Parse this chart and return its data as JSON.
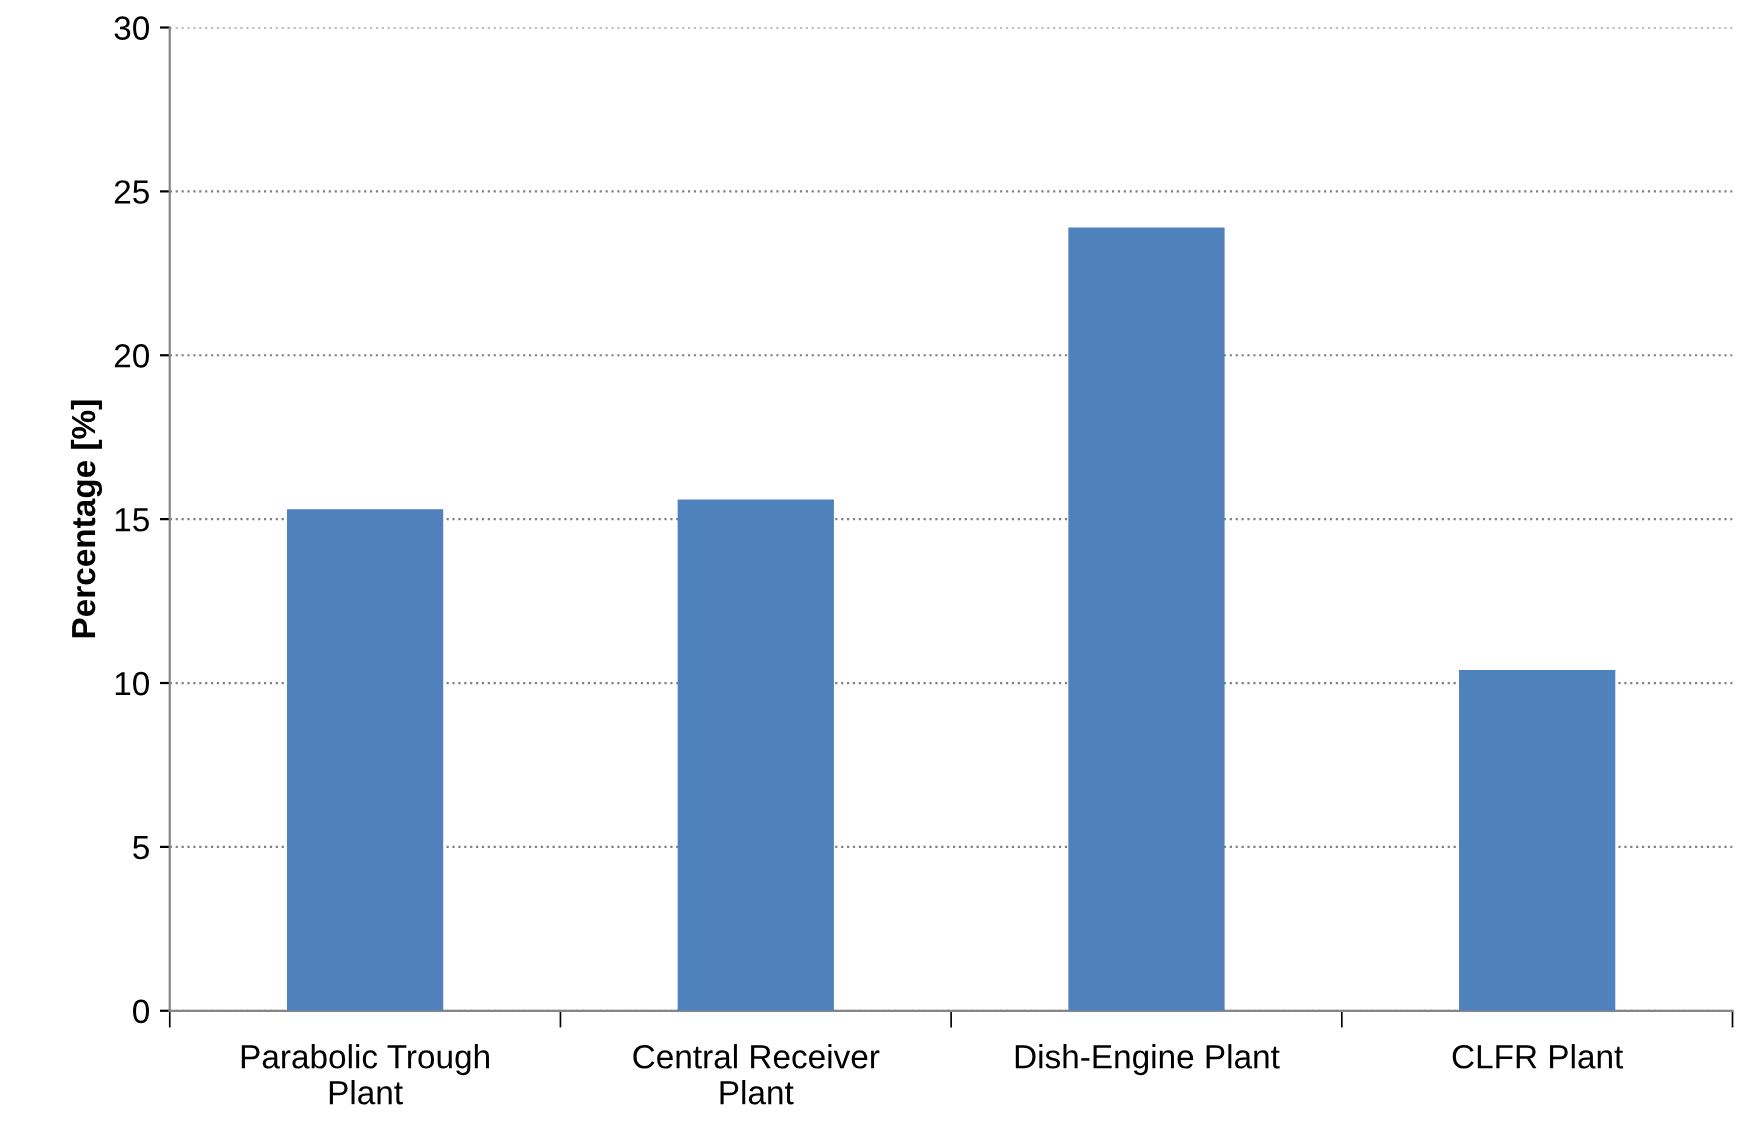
{
  "chart_data": {
    "type": "bar",
    "ylabel": "Percentage [%]",
    "categories": [
      "Parabolic Trough\nPlant",
      "Central Receiver\nPlant",
      "Dish-Engine Plant",
      "CLFR Plant"
    ],
    "values": [
      15.3,
      15.6,
      23.9,
      10.4
    ],
    "color": "#4f81bd",
    "ylim": [
      0,
      30
    ],
    "yticks": [
      0,
      5,
      10,
      15,
      20,
      25,
      30
    ],
    "grid": "y"
  }
}
